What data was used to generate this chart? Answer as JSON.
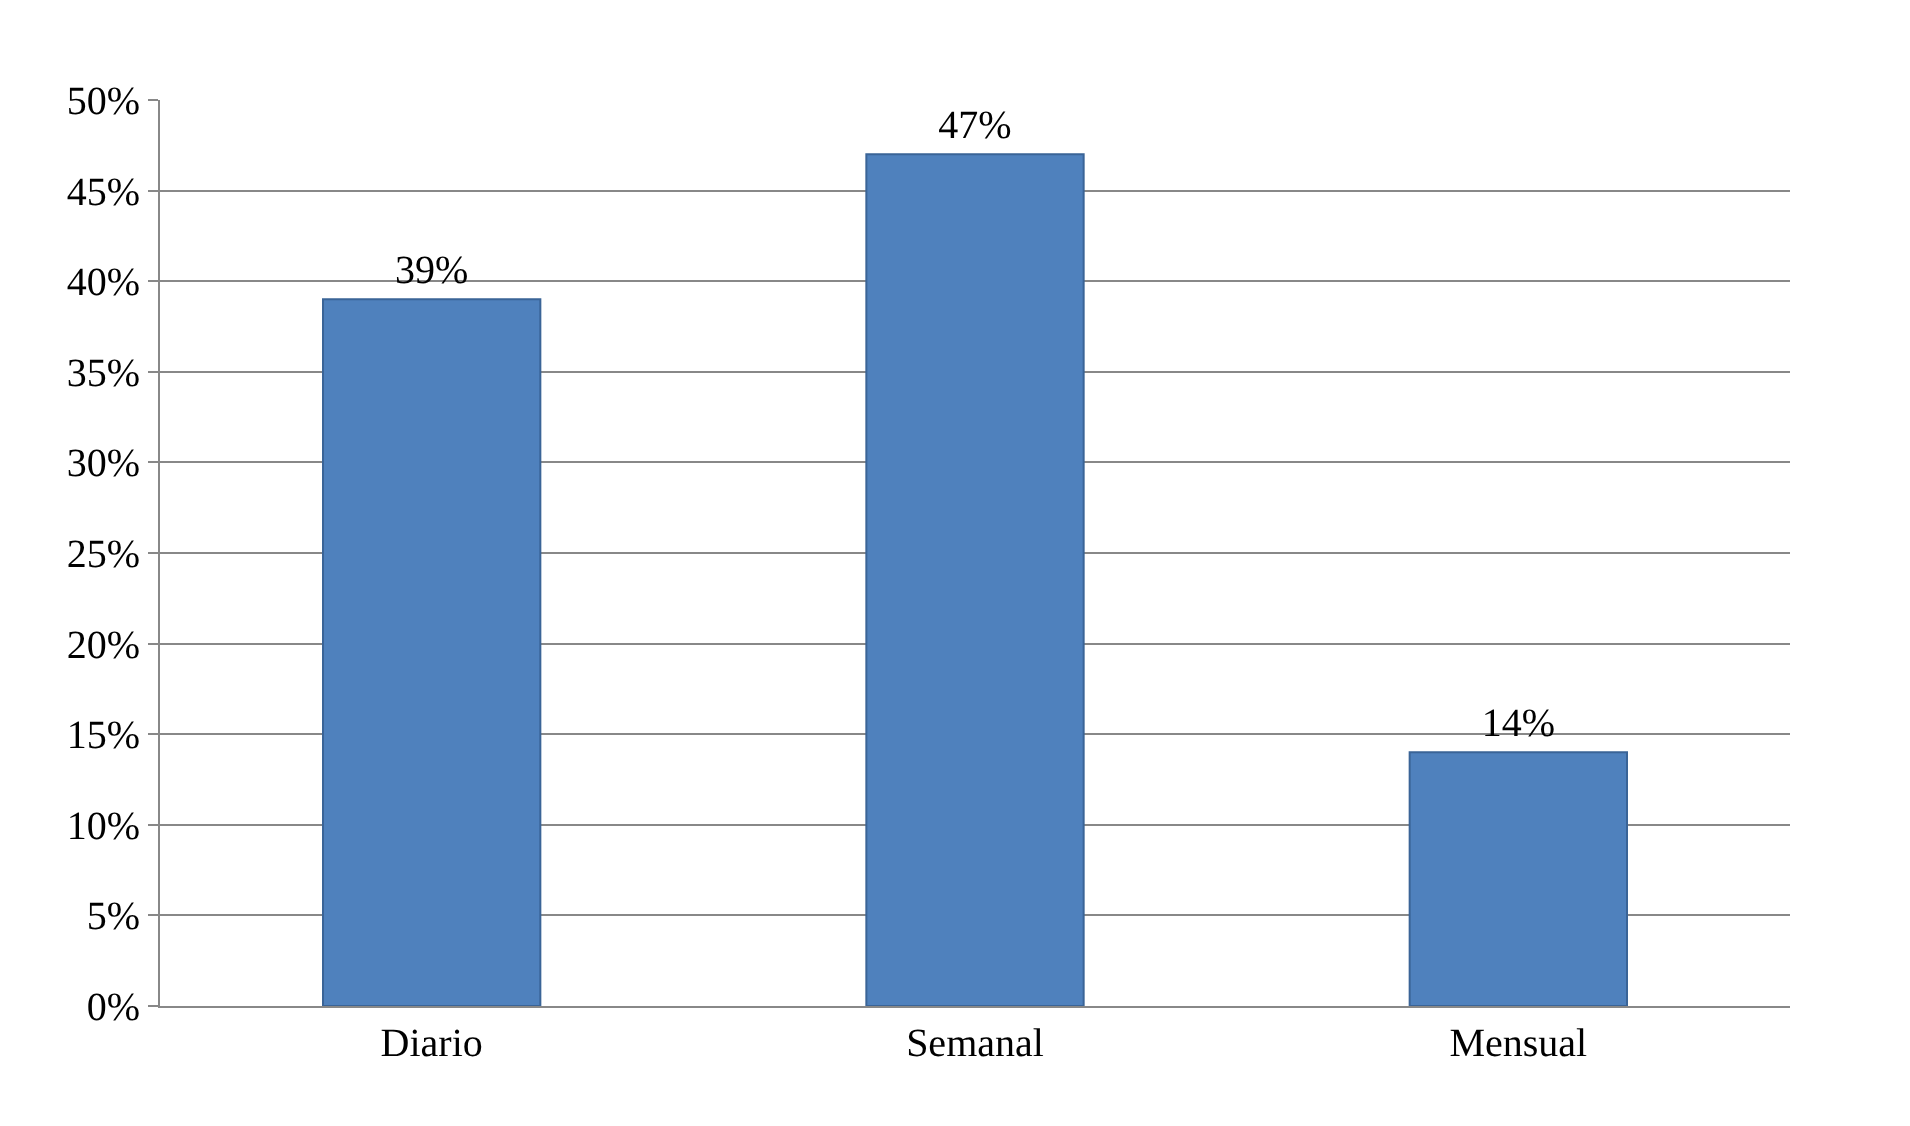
{
  "chart_data": {
    "type": "bar",
    "categories": [
      "Diario",
      "Semanal",
      "Mensual"
    ],
    "values": [
      39,
      47,
      14
    ],
    "value_labels": [
      "39%",
      "47%",
      "14%"
    ],
    "color": "#4f81bd",
    "ylim": [
      0,
      50
    ],
    "yticks": [
      {
        "value": 0,
        "label": "0%"
      },
      {
        "value": 5,
        "label": "5%"
      },
      {
        "value": 10,
        "label": "10%"
      },
      {
        "value": 15,
        "label": "15%"
      },
      {
        "value": 20,
        "label": "20%"
      },
      {
        "value": 25,
        "label": "25%"
      },
      {
        "value": 30,
        "label": "30%"
      },
      {
        "value": 35,
        "label": "35%"
      },
      {
        "value": 40,
        "label": "40%"
      },
      {
        "value": 45,
        "label": "45%"
      },
      {
        "value": 50,
        "label": "50%"
      }
    ],
    "grid": "y",
    "legend": false
  }
}
